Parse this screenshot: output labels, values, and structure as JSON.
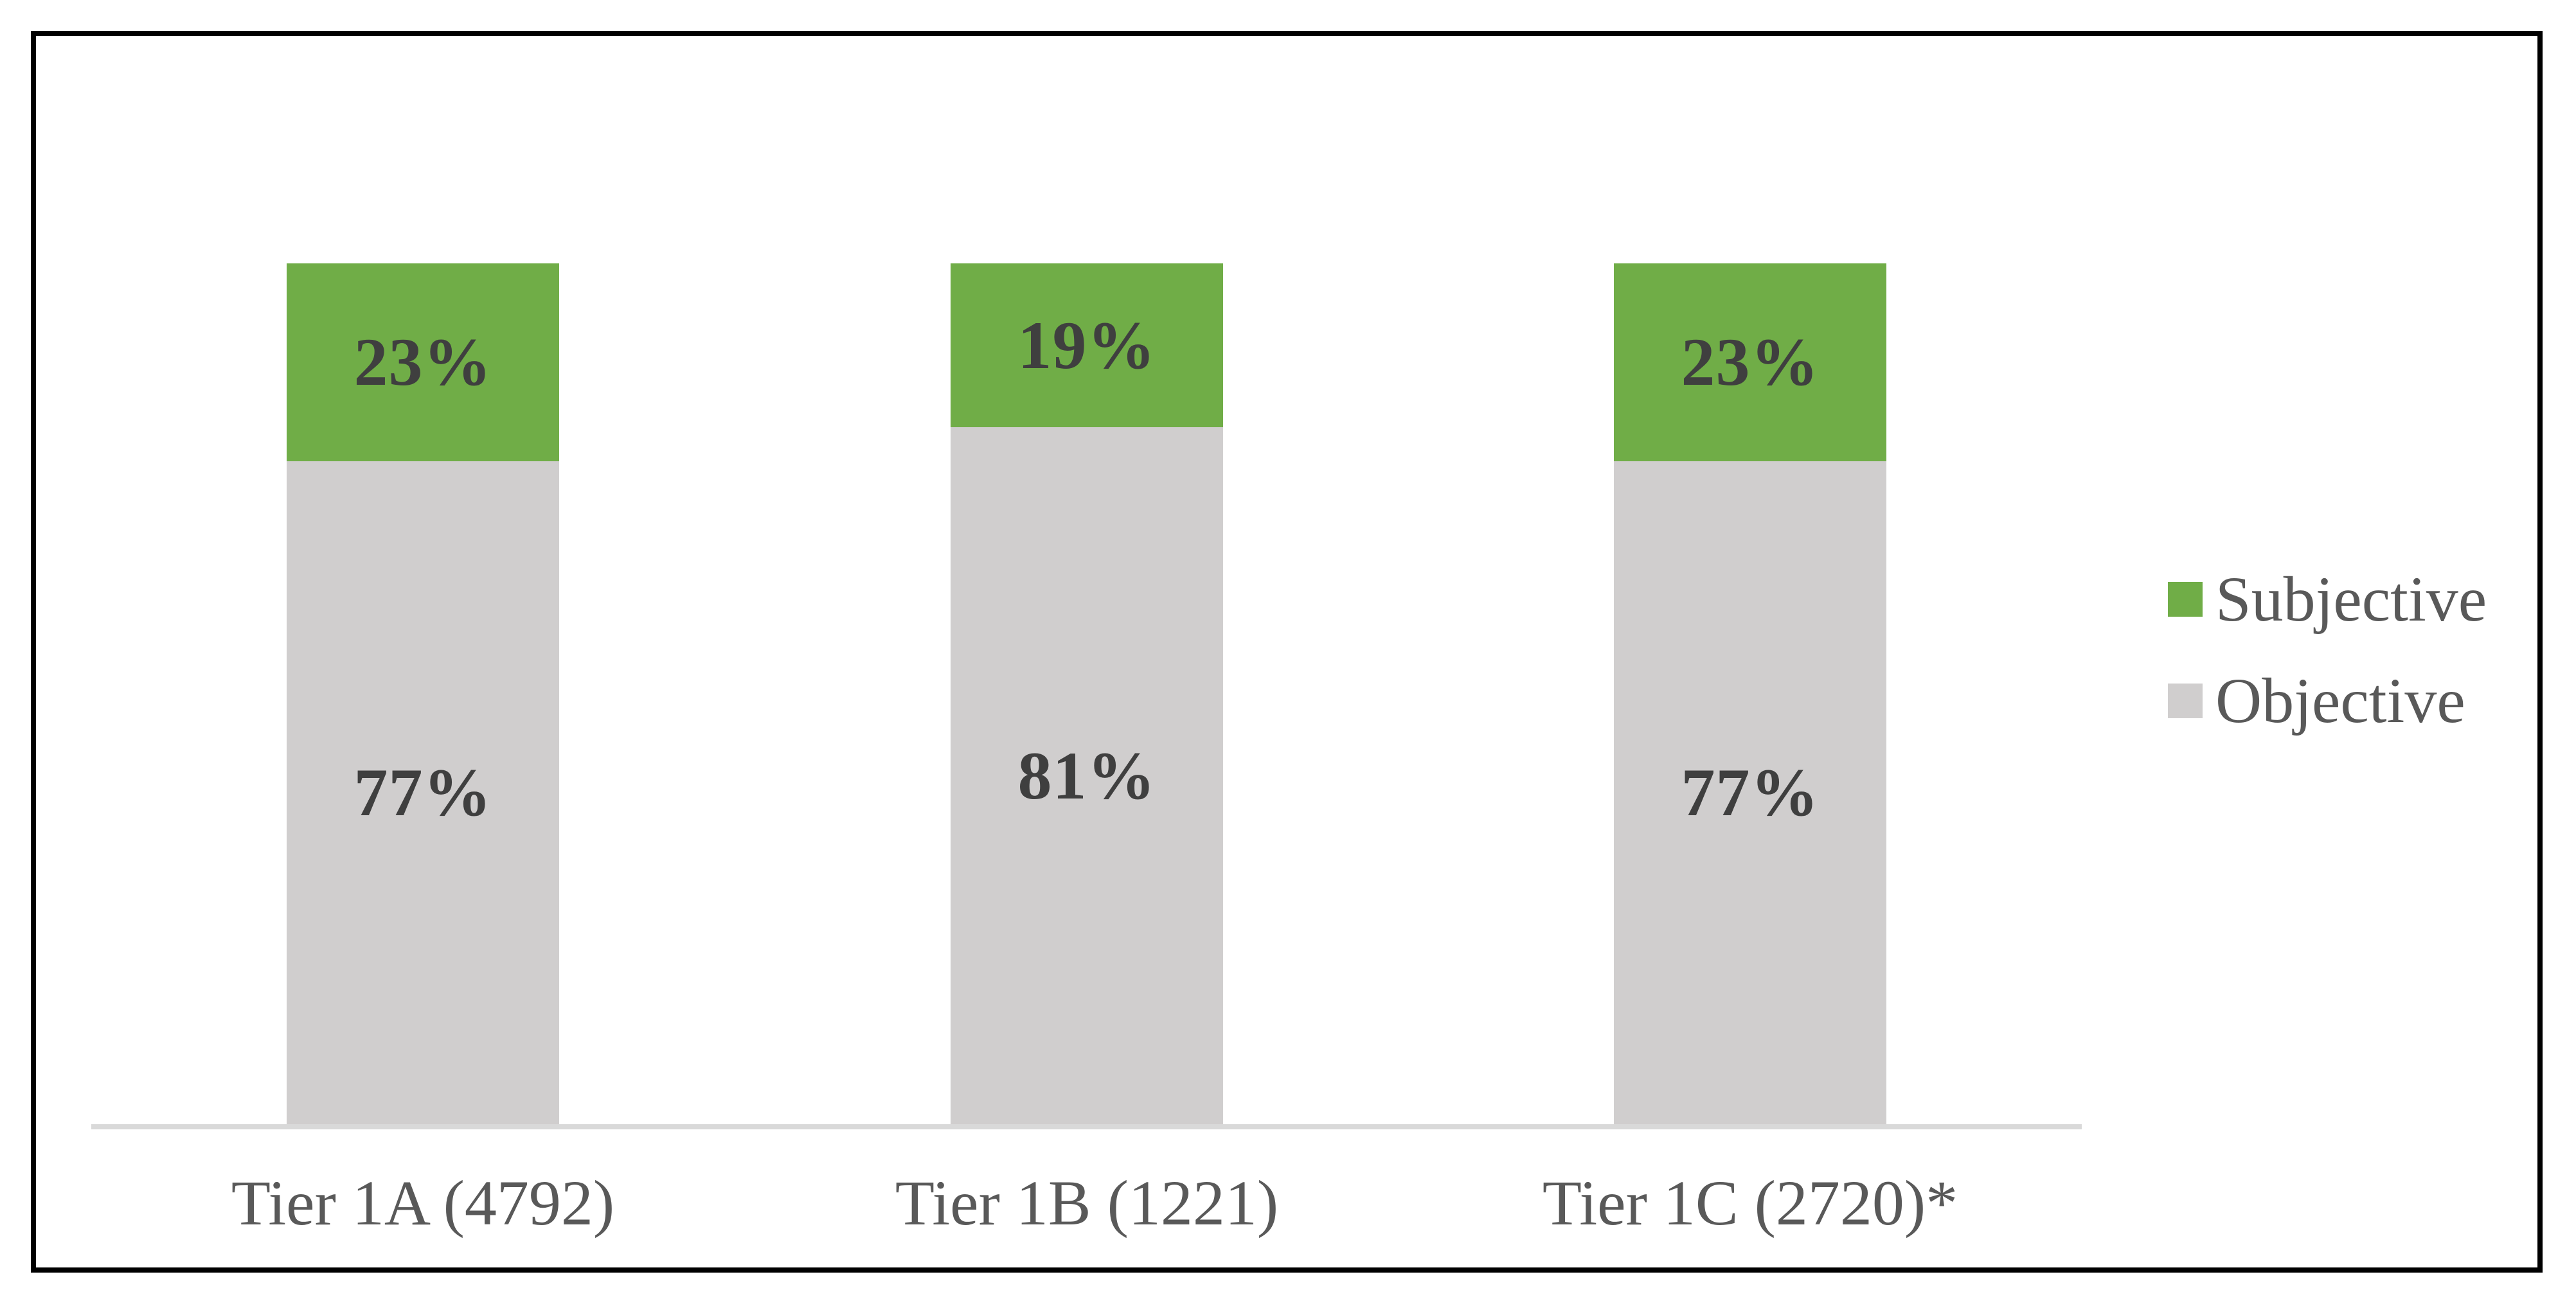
{
  "chart_data": {
    "type": "bar",
    "variant": "stacked-column-100-percent",
    "title": "",
    "xlabel": "",
    "ylabel": "",
    "ylim": [
      0,
      100
    ],
    "grid": false,
    "categories": [
      "Tier 1A (4792)",
      "Tier 1B (1221)",
      "Tier 1C (2720)*"
    ],
    "series": [
      {
        "name": "Subjective",
        "color": "#70ad47",
        "values": [
          23,
          19,
          23
        ],
        "labels": [
          "23%",
          "19%",
          "23%"
        ]
      },
      {
        "name": "Objective",
        "color": "#d0cece",
        "values": [
          77,
          81,
          77
        ],
        "labels": [
          "77%",
          "81%",
          "77%"
        ]
      }
    ],
    "legend": {
      "position": "right",
      "items": [
        {
          "label": "Subjective",
          "color": "#70ad47"
        },
        {
          "label": "Objective",
          "color": "#d0cece"
        }
      ]
    },
    "axis": {
      "baseline_color": "#d9d9d9"
    }
  },
  "styles": {
    "frame_border_color": "#000000",
    "background_color": "#ffffff",
    "value_label_color": "#3f3f3f",
    "category_label_color": "#595959",
    "legend_label_color": "#595959"
  }
}
